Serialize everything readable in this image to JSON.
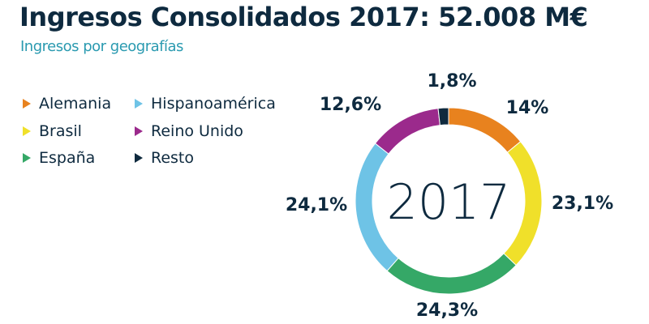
{
  "chart_data": {
    "type": "pie",
    "title": "Ingresos Consolidados 2017: 52.008 M€",
    "subtitle": "Ingresos por geografías",
    "center_label": "2017",
    "legend_placement": "top-left",
    "categories": [
      "Alemania",
      "Brasil",
      "España",
      "Hispanoamérica",
      "Reino Unido",
      "Resto"
    ],
    "values": [
      14,
      23.1,
      24.3,
      24.1,
      12.6,
      1.8
    ],
    "labels": [
      "14%",
      "23,1%",
      "24,3%",
      "24,1%",
      "12,6%",
      "1,8%"
    ],
    "colors": [
      "#e8821e",
      "#f0e02a",
      "#35a867",
      "#6ec3e6",
      "#9b2a8c",
      "#0f2a3e"
    ]
  }
}
